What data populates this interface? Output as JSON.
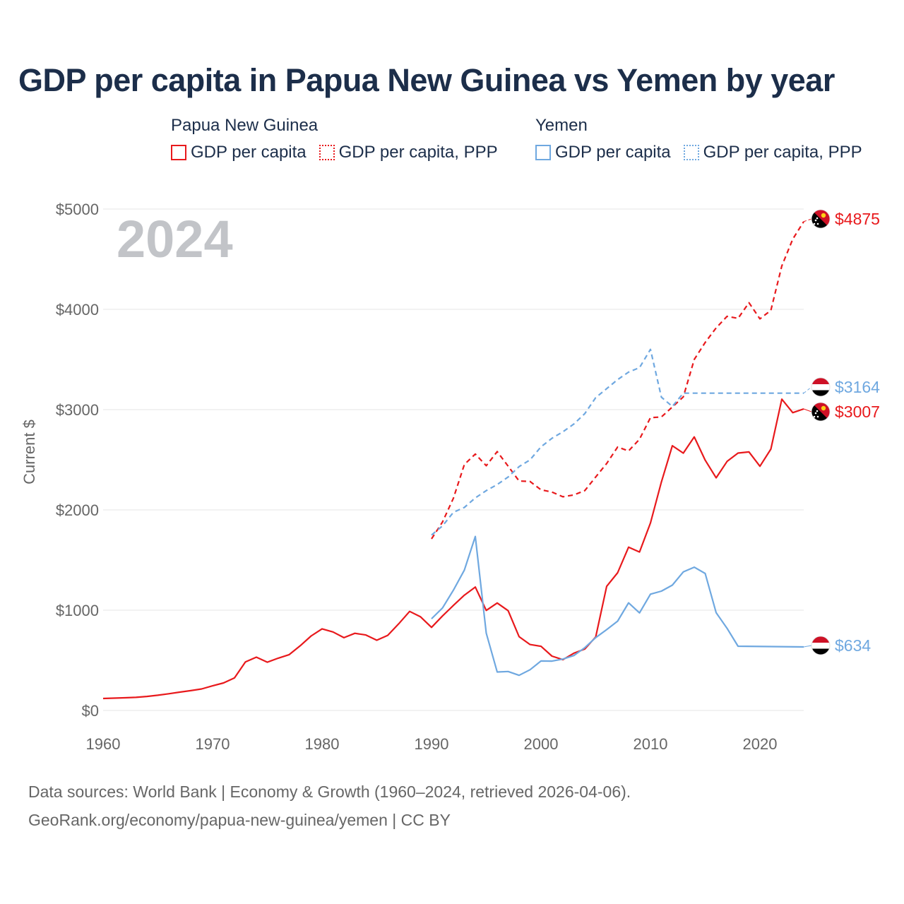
{
  "title": "GDP per capita in Papua New Guinea vs Yemen by year",
  "year_display": "2024",
  "y_axis_label": "Current $",
  "legend": {
    "png": {
      "country": "Papua New Guinea",
      "gdp": "GDP per capita",
      "ppp": "GDP per capita, PPP"
    },
    "yemen": {
      "country": "Yemen",
      "gdp": "GDP per capita",
      "ppp": "GDP per capita, PPP"
    }
  },
  "colors": {
    "png": "#e8191c",
    "yemen": "#6fa8e0",
    "text": "#1c2e4a",
    "grid": "#e6e6e6",
    "axis_text": "#666666"
  },
  "footer": {
    "line1": "Data sources: World Bank | Economy & Growth (1960–2024, retrieved 2026-04-06).",
    "line2": "GeoRank.org/economy/papua-new-guinea/yemen | CC BY"
  },
  "end_labels": {
    "png_ppp": "$4875",
    "yemen_ppp": "$3164",
    "png_gdp": "$3007",
    "yemen_gdp": "$634"
  },
  "chart_data": {
    "type": "line",
    "title": "GDP per capita in Papua New Guinea vs Yemen by year",
    "xlabel": "",
    "ylabel": "Current $",
    "xlim": [
      1960,
      2024
    ],
    "ylim": [
      0,
      5000
    ],
    "x_ticks": [
      1960,
      1970,
      1980,
      1990,
      2000,
      2010,
      2020
    ],
    "y_ticks": [
      {
        "value": 0,
        "label": "$0"
      },
      {
        "value": 1000,
        "label": "$1000"
      },
      {
        "value": 2000,
        "label": "$2000"
      },
      {
        "value": 3000,
        "label": "$3000"
      },
      {
        "value": 4000,
        "label": "$4000"
      },
      {
        "value": 5000,
        "label": "$5000"
      }
    ],
    "series": [
      {
        "name": "Papua New Guinea GDP per capita",
        "key": "png_gdp",
        "country": "png",
        "style": "solid",
        "points": [
          [
            1960,
            120
          ],
          [
            1961,
            123
          ],
          [
            1962,
            127
          ],
          [
            1963,
            131
          ],
          [
            1964,
            140
          ],
          [
            1965,
            152
          ],
          [
            1966,
            167
          ],
          [
            1967,
            183
          ],
          [
            1968,
            198
          ],
          [
            1969,
            215
          ],
          [
            1970,
            246
          ],
          [
            1971,
            275
          ],
          [
            1972,
            325
          ],
          [
            1973,
            484
          ],
          [
            1974,
            532
          ],
          [
            1975,
            482
          ],
          [
            1976,
            522
          ],
          [
            1977,
            557
          ],
          [
            1978,
            645
          ],
          [
            1979,
            743
          ],
          [
            1980,
            814
          ],
          [
            1981,
            783
          ],
          [
            1982,
            726
          ],
          [
            1983,
            770
          ],
          [
            1984,
            753
          ],
          [
            1985,
            701
          ],
          [
            1986,
            749
          ],
          [
            1987,
            864
          ],
          [
            1988,
            988
          ],
          [
            1989,
            934
          ],
          [
            1990,
            829
          ],
          [
            1991,
            942
          ],
          [
            1992,
            1048
          ],
          [
            1993,
            1150
          ],
          [
            1994,
            1231
          ],
          [
            1995,
            998
          ],
          [
            1996,
            1072
          ],
          [
            1997,
            995
          ],
          [
            1998,
            736
          ],
          [
            1999,
            658
          ],
          [
            2000,
            640
          ],
          [
            2001,
            542
          ],
          [
            2002,
            506
          ],
          [
            2003,
            571
          ],
          [
            2004,
            613
          ],
          [
            2005,
            734
          ],
          [
            2006,
            1238
          ],
          [
            2007,
            1373
          ],
          [
            2008,
            1628
          ],
          [
            2009,
            1580
          ],
          [
            2010,
            1870
          ],
          [
            2011,
            2279
          ],
          [
            2012,
            2640
          ],
          [
            2013,
            2566
          ],
          [
            2014,
            2728
          ],
          [
            2015,
            2496
          ],
          [
            2016,
            2320
          ],
          [
            2017,
            2484
          ],
          [
            2018,
            2567
          ],
          [
            2019,
            2578
          ],
          [
            2020,
            2435
          ],
          [
            2021,
            2606
          ],
          [
            2022,
            3104
          ],
          [
            2023,
            2970
          ],
          [
            2024,
            3007
          ]
        ]
      },
      {
        "name": "Papua New Guinea GDP per capita, PPP",
        "key": "png_ppp",
        "country": "png",
        "style": "dashed",
        "points": [
          [
            1990,
            1711
          ],
          [
            1991,
            1879
          ],
          [
            1992,
            2117
          ],
          [
            1993,
            2453
          ],
          [
            1994,
            2557
          ],
          [
            1995,
            2441
          ],
          [
            1996,
            2582
          ],
          [
            1997,
            2436
          ],
          [
            1998,
            2288
          ],
          [
            1999,
            2284
          ],
          [
            2000,
            2201
          ],
          [
            2001,
            2178
          ],
          [
            2002,
            2131
          ],
          [
            2003,
            2149
          ],
          [
            2004,
            2192
          ],
          [
            2005,
            2329
          ],
          [
            2006,
            2463
          ],
          [
            2007,
            2627
          ],
          [
            2008,
            2588
          ],
          [
            2009,
            2705
          ],
          [
            2010,
            2920
          ],
          [
            2011,
            2927
          ],
          [
            2012,
            3027
          ],
          [
            2013,
            3127
          ],
          [
            2014,
            3500
          ],
          [
            2015,
            3670
          ],
          [
            2016,
            3815
          ],
          [
            2017,
            3930
          ],
          [
            2018,
            3910
          ],
          [
            2019,
            4066
          ],
          [
            2020,
            3905
          ],
          [
            2021,
            3990
          ],
          [
            2022,
            4433
          ],
          [
            2023,
            4700
          ],
          [
            2024,
            4875
          ]
        ]
      },
      {
        "name": "Yemen GDP per capita",
        "key": "yemen_gdp",
        "country": "yemen",
        "style": "solid",
        "points": [
          [
            1990,
            915
          ],
          [
            1991,
            1022
          ],
          [
            1992,
            1200
          ],
          [
            1993,
            1400
          ],
          [
            1994,
            1735
          ],
          [
            1995,
            771
          ],
          [
            1996,
            384
          ],
          [
            1997,
            389
          ],
          [
            1998,
            351
          ],
          [
            1999,
            406
          ],
          [
            2000,
            494
          ],
          [
            2001,
            492
          ],
          [
            2002,
            513
          ],
          [
            2003,
            548
          ],
          [
            2004,
            626
          ],
          [
            2005,
            727
          ],
          [
            2006,
            806
          ],
          [
            2007,
            891
          ],
          [
            2008,
            1073
          ],
          [
            2009,
            973
          ],
          [
            2010,
            1160
          ],
          [
            2011,
            1190
          ],
          [
            2012,
            1250
          ],
          [
            2013,
            1382
          ],
          [
            2014,
            1429
          ],
          [
            2015,
            1366
          ],
          [
            2016,
            975
          ],
          [
            2017,
            819
          ],
          [
            2018,
            641
          ],
          [
            2024,
            634
          ]
        ]
      },
      {
        "name": "Yemen GDP per capita, PPP",
        "key": "yemen_ppp",
        "country": "yemen",
        "style": "dashed",
        "points": [
          [
            1990,
            1749
          ],
          [
            1991,
            1840
          ],
          [
            1992,
            1976
          ],
          [
            1993,
            2025
          ],
          [
            1994,
            2120
          ],
          [
            1995,
            2192
          ],
          [
            1996,
            2253
          ],
          [
            1997,
            2328
          ],
          [
            1998,
            2432
          ],
          [
            1999,
            2499
          ],
          [
            2000,
            2629
          ],
          [
            2001,
            2714
          ],
          [
            2002,
            2779
          ],
          [
            2003,
            2856
          ],
          [
            2004,
            2960
          ],
          [
            2005,
            3120
          ],
          [
            2006,
            3209
          ],
          [
            2007,
            3299
          ],
          [
            2008,
            3374
          ],
          [
            2009,
            3418
          ],
          [
            2010,
            3601
          ],
          [
            2011,
            3124
          ],
          [
            2012,
            3032
          ],
          [
            2013,
            3164
          ],
          [
            2024,
            3164
          ]
        ]
      }
    ]
  }
}
